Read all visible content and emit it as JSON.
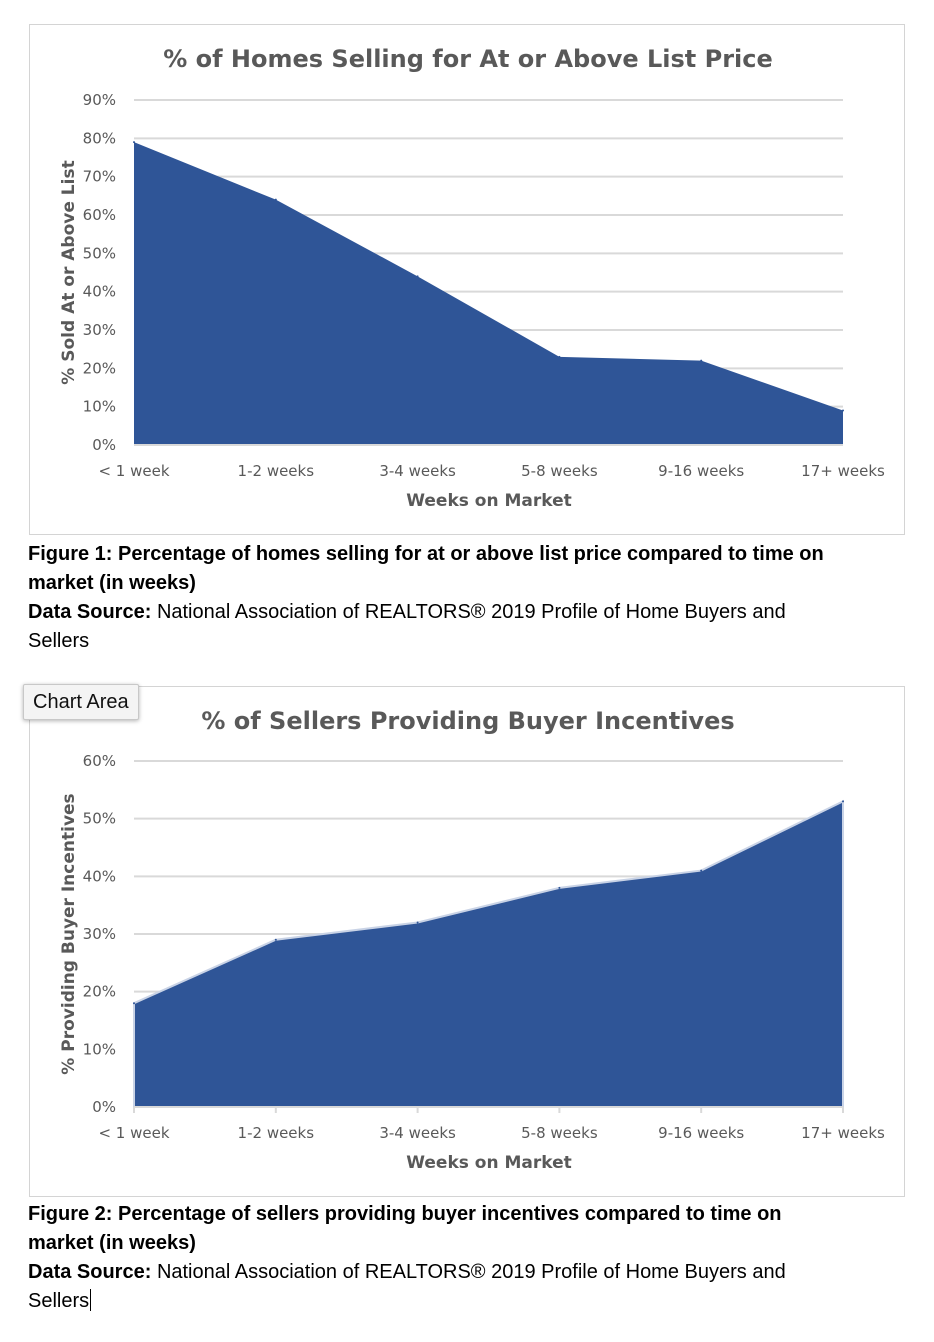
{
  "colors": {
    "area_fill": "#2f5597",
    "grid": "#d9d9d9",
    "axis_text": "#595959",
    "title_text": "#595959"
  },
  "chart_data": [
    {
      "type": "area",
      "title": "% of Homes Selling for At or Above List Price",
      "xlabel": "Weeks on Market",
      "ylabel": "% Sold At or Above List",
      "categories": [
        "< 1 week",
        "1-2 weeks",
        "3-4 weeks",
        "5-8 weeks",
        "9-16 weeks",
        "17+ weeks"
      ],
      "values": [
        79,
        64,
        44,
        23,
        22,
        9
      ],
      "yticks": [
        "0%",
        "10%",
        "20%",
        "30%",
        "40%",
        "50%",
        "60%",
        "70%",
        "80%",
        "90%"
      ],
      "ylim": [
        0,
        90
      ],
      "grid": true
    },
    {
      "type": "area",
      "title": "% of Sellers Providing Buyer Incentives",
      "xlabel": "Weeks on Market",
      "ylabel": "% Providing Buyer Incentives",
      "categories": [
        "< 1 week",
        "1-2 weeks",
        "3-4 weeks",
        "5-8 weeks",
        "9-16 weeks",
        "17+ weeks"
      ],
      "values": [
        18,
        29,
        32,
        38,
        41,
        53
      ],
      "yticks": [
        "0%",
        "10%",
        "20%",
        "30%",
        "40%",
        "50%",
        "60%"
      ],
      "ylim": [
        0,
        60
      ],
      "grid": true
    }
  ],
  "captions": [
    {
      "figure": "Figure 1: Percentage of homes selling for at or above list price compared to time on market (in weeks)",
      "source_label": "Data Source:",
      "source_text": "National Association of REALTORS® 2019 Profile of Home Buyers and Sellers"
    },
    {
      "figure": "Figure 2: Percentage of sellers providing buyer incentives compared to time on market (in weeks)",
      "source_label": "Data Source:",
      "source_text": "National Association of REALTORS® 2019 Profile of Home Buyers and Sellers"
    }
  ],
  "tooltip": {
    "label": "Chart Area"
  }
}
